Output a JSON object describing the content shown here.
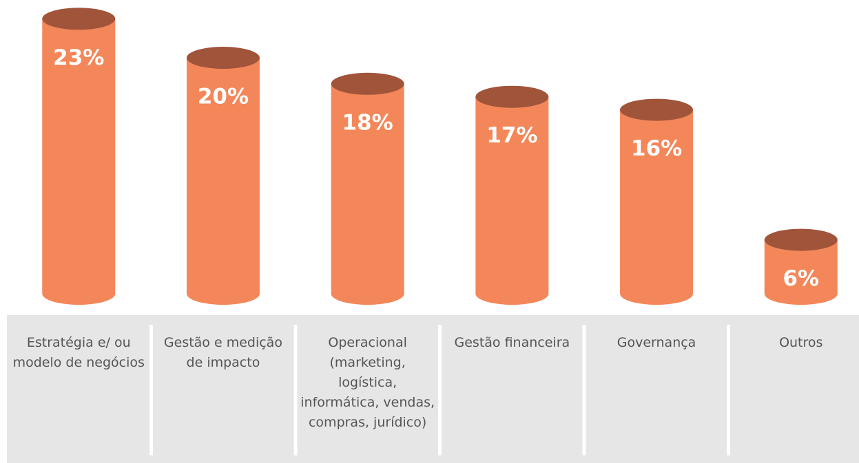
{
  "chart_data": {
    "type": "cylinder-bar",
    "categories": [
      "Estratégia e/ ou modelo de negócios",
      "Gestão e medição de impacto",
      "Operacional (marketing, logística, informática, vendas, compras, jurídico)",
      "Gestão financeira",
      "Governança",
      "Outros"
    ],
    "values": [
      23,
      20,
      18,
      17,
      16,
      6
    ],
    "value_labels": [
      "23%",
      "20%",
      "18%",
      "17%",
      "16%",
      "6%"
    ],
    "color": "#f4875a",
    "top_color": "#a0543a"
  }
}
